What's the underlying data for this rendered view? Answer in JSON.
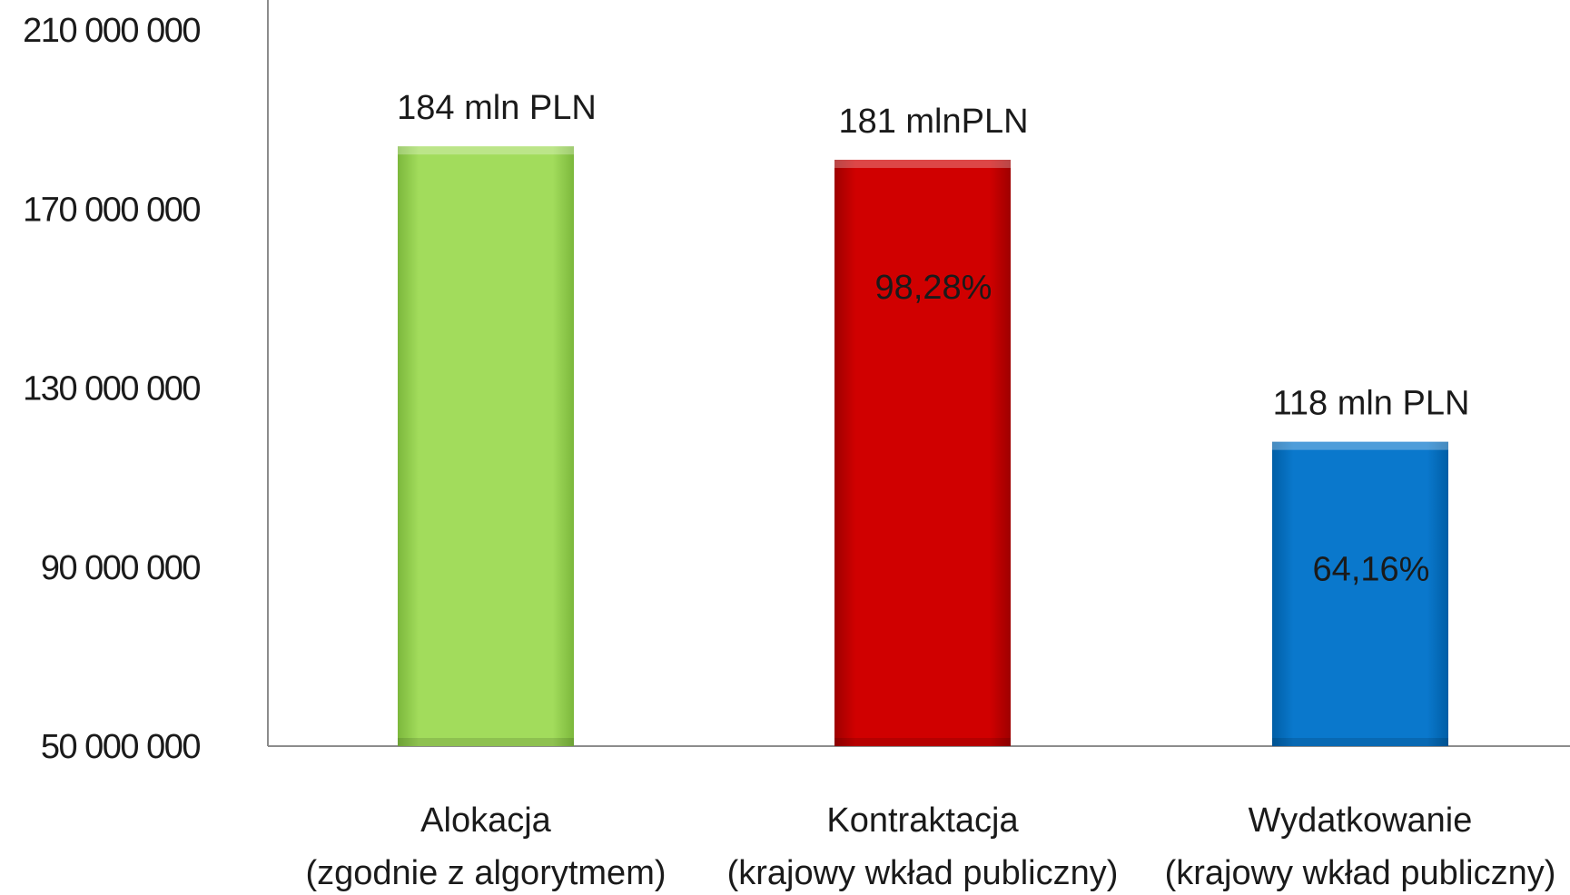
{
  "chart_data": {
    "type": "bar",
    "categories": [
      [
        "Alokacja",
        "(zgodnie z algorytmem)"
      ],
      [
        "Kontraktacja",
        "(krajowy wkład publiczny)"
      ],
      [
        "Wydatkowanie",
        "(krajowy wkład publiczny)"
      ]
    ],
    "values": [
      184000000,
      181000000,
      118000000
    ],
    "value_labels": [
      "184 mln PLN",
      "181 mlnPLN",
      "118 mln PLN"
    ],
    "percent_labels": [
      "",
      "98,28%",
      "64,16%"
    ],
    "bar_colors": [
      "#92D050",
      "#C00000",
      "#0070C0"
    ],
    "ylim": [
      50000000,
      210000000
    ],
    "yticks": [
      50000000,
      90000000,
      130000000,
      170000000,
      210000000
    ],
    "ytick_labels": [
      "50 000 000",
      "90 000 000",
      "130 000 000",
      "170 000 000",
      "210 000 000"
    ],
    "grid": false,
    "title": "",
    "xlabel": "",
    "ylabel": ""
  }
}
